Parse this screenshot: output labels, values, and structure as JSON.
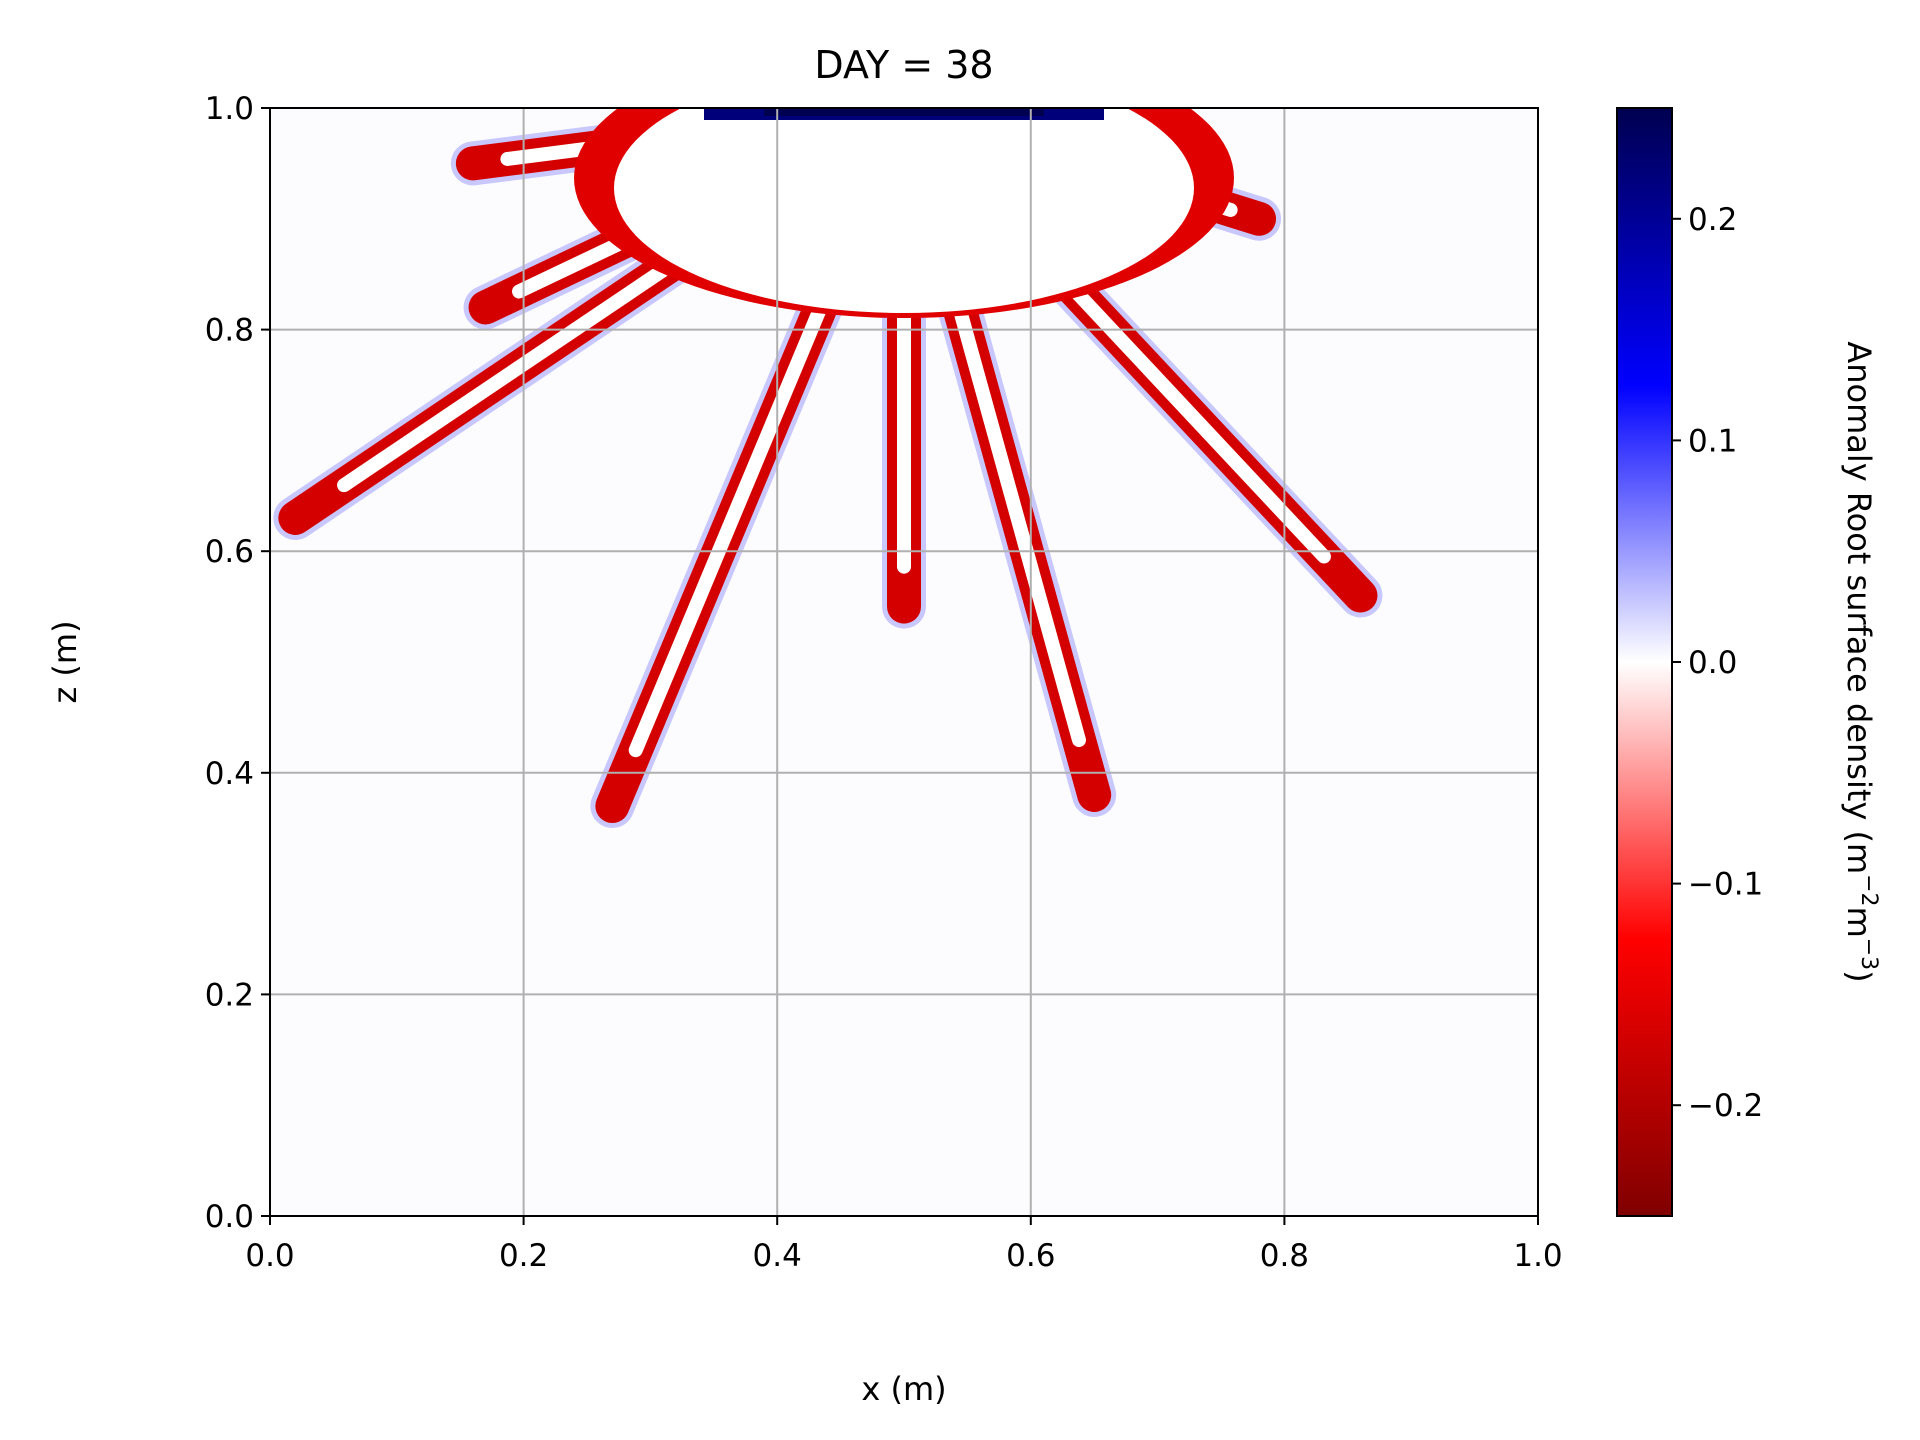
{
  "chart_data": {
    "type": "heatmap",
    "title": "DAY = 38",
    "xlabel": "x (m)",
    "ylabel": "z (m)",
    "xlim": [
      0.0,
      1.0
    ],
    "ylim": [
      0.0,
      1.0
    ],
    "xticks": [
      "0.0",
      "0.2",
      "0.4",
      "0.6",
      "0.8",
      "1.0"
    ],
    "yticks": [
      "0.0",
      "0.2",
      "0.4",
      "0.6",
      "0.8",
      "1.0"
    ],
    "grid": true,
    "colorbar": {
      "label": "Anomaly Root surface density (m",
      "label_sup1": "−2",
      "label_mid": "m",
      "label_sup2": "−3",
      "label_end": ")",
      "range": [
        -0.25,
        0.25
      ],
      "ticks": [
        {
          "value": 0.2,
          "label": "0.2"
        },
        {
          "value": 0.1,
          "label": "0.1"
        },
        {
          "value": 0.0,
          "label": "0.0"
        },
        {
          "value": -0.1,
          "label": "−0.1"
        },
        {
          "value": -0.2,
          "label": "−0.2"
        }
      ],
      "colormap": "seismic_r",
      "colors": [
        "#800000",
        "#ff0000",
        "#ffffff",
        "#0000ff",
        "#000050"
      ]
    },
    "field_description_values": {
      "background_value": 0.0,
      "root_front_value": -0.2,
      "root_edge_value": 0.1,
      "root_tips": [
        {
          "x": 0.02,
          "z": 0.63
        },
        {
          "x": 0.16,
          "z": 0.95
        },
        {
          "x": 0.17,
          "z": 0.82
        },
        {
          "x": 0.27,
          "z": 0.37
        },
        {
          "x": 0.5,
          "z": 0.55
        },
        {
          "x": 0.65,
          "z": 0.38
        },
        {
          "x": 0.78,
          "z": 0.9
        },
        {
          "x": 0.86,
          "z": 0.56
        }
      ],
      "root_origin": {
        "x": 0.5,
        "z": 1.0
      }
    }
  }
}
